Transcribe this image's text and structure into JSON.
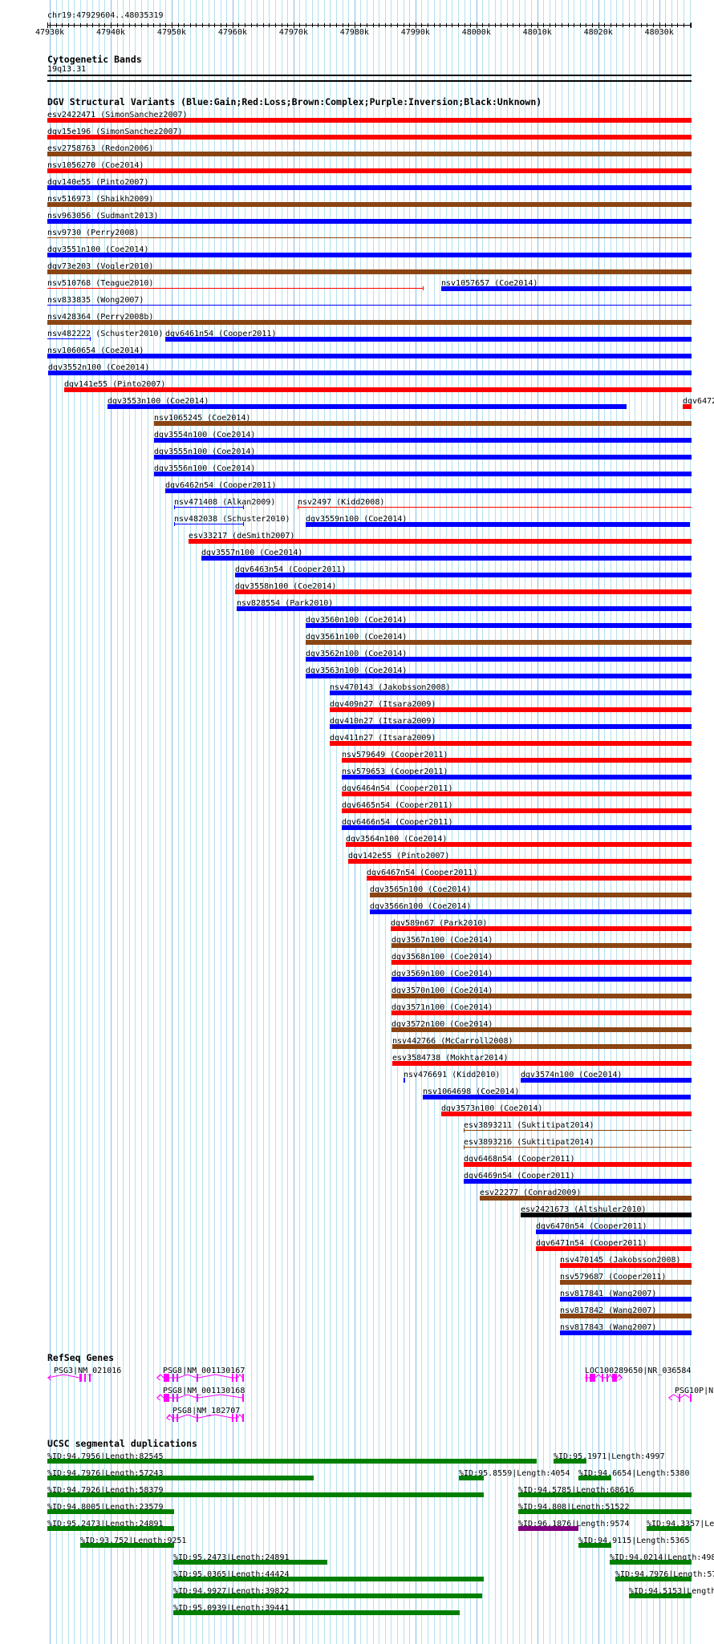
{
  "colors": {
    "gain": "#0000ff",
    "loss": "#ff0000",
    "complex": "#8b4513",
    "inversion": "#800080",
    "unknown": "#000000",
    "segdup": "#008000",
    "segdup_high": "#800080",
    "gene": "#ff00ff"
  },
  "view": {
    "start_kb": 47929.604,
    "end_kb": 48035.319
  },
  "ruler": {
    "region": "chr19:47929604..48035319",
    "ticks": [
      {
        "kb": 47930,
        "label": "47930k"
      },
      {
        "kb": 47940,
        "label": "47940k"
      },
      {
        "kb": 47950,
        "label": "47950k"
      },
      {
        "kb": 47960,
        "label": "47960k"
      },
      {
        "kb": 47970,
        "label": "47970k"
      },
      {
        "kb": 47980,
        "label": "47980k"
      },
      {
        "kb": 47990,
        "label": "47990k"
      },
      {
        "kb": 48000,
        "label": "48000k"
      },
      {
        "kb": 48010,
        "label": "48010k"
      },
      {
        "kb": 48020,
        "label": "48020k"
      },
      {
        "kb": 48030,
        "label": "48030k"
      }
    ]
  },
  "cytoband": {
    "title": "Cytogenetic Bands",
    "band": "19q13.31"
  },
  "dgv": {
    "title": "DGV Structural Variants (Blue:Gain;Red:Loss;Brown:Complex;Purple:Inversion;Black:Unknown)",
    "rows": [
      [
        {
          "label": "esv2422471 (SimonSanchez2007)",
          "type": "loss",
          "s": 47929.6
        }
      ],
      [
        {
          "label": "dgv15e196 (SimonSanchez2007)",
          "type": "loss",
          "s": 47929.6
        }
      ],
      [
        {
          "label": "esv2758763 (Redon2006)",
          "type": "complex",
          "s": 47929.6
        }
      ],
      [
        {
          "label": "nsv1056270 (Coe2014)",
          "type": "loss",
          "s": 47929.6
        }
      ],
      [
        {
          "label": "dgv140e55 (Pinto2007)",
          "type": "gain",
          "s": 47929.6
        }
      ],
      [
        {
          "label": "nsv516973 (Shaikh2009)",
          "type": "complex",
          "s": 47929.6
        }
      ],
      [
        {
          "label": "nsv963056 (Sudmant2013)",
          "type": "gain",
          "s": 47929.6
        }
      ],
      [
        {
          "label": "nsv9730 (Perry2008)",
          "type": "complex",
          "s": 47929.6,
          "thin": true
        }
      ],
      [
        {
          "label": "dgv3551n100 (Coe2014)",
          "type": "gain",
          "s": 47929.6
        }
      ],
      [
        {
          "label": "dgv73e203 (Vogler2010)",
          "type": "complex",
          "s": 47929.6
        }
      ],
      [
        {
          "label": "nsv510768 (Teague2010)",
          "type": "loss",
          "s": 47929.6,
          "e": 47991.3,
          "thin": true
        },
        {
          "label": "nsv1057657 (Coe2014)",
          "type": "gain",
          "s": 47994.2
        }
      ],
      [
        {
          "label": "nsv833835 (Wong2007)",
          "type": "gain",
          "s": 47929.6,
          "thin": true
        }
      ],
      [
        {
          "label": "nsv428364 (Perry2008b)",
          "type": "complex",
          "s": 47929.6
        }
      ],
      [
        {
          "label": "nsv482222 (Schuster2010)",
          "type": "gain",
          "s": 47929.6,
          "e": 47936.7,
          "thin": true
        },
        {
          "label": "dgv6461n54 (Cooper2011)",
          "type": "gain",
          "s": 47948.9
        }
      ],
      [
        {
          "label": "nsv1060654 (Coe2014)",
          "type": "gain",
          "s": 47929.6
        }
      ],
      [
        {
          "label": "dgv3552n100 (Coe2014)",
          "type": "gain",
          "s": 47929.7
        }
      ],
      [
        {
          "label": "dgv141e55 (Pinto2007)",
          "type": "loss",
          "s": 47932.4
        }
      ],
      [
        {
          "label": "dgv3553n100 (Coe2014)",
          "type": "gain",
          "s": 47939.5,
          "e": 48024.7
        },
        {
          "label": "dgv6472",
          "type": "loss",
          "s": 48033.9
        }
      ],
      [
        {
          "label": "nsv1065245 (Coe2014)",
          "type": "complex",
          "s": 47947.1
        }
      ],
      [
        {
          "label": "dgv3554n100 (Coe2014)",
          "type": "gain",
          "s": 47947.1
        }
      ],
      [
        {
          "label": "dgv3555n100 (Coe2014)",
          "type": "gain",
          "s": 47947.1
        }
      ],
      [
        {
          "label": "dgv3556n100 (Coe2014)",
          "type": "gain",
          "s": 47947.1
        }
      ],
      [
        {
          "label": "dgv6462n54 (Cooper2011)",
          "type": "gain",
          "s": 47948.9
        }
      ],
      [
        {
          "label": "nsv471408 (Alkan2009)",
          "type": "gain",
          "s": 47950.4,
          "e": 47961.9,
          "thin": true
        },
        {
          "label": "nsv2497 (Kidd2008)",
          "type": "loss",
          "s": 47970.7,
          "thin": true
        }
      ],
      [
        {
          "label": "nsv482038 (Schuster2010)",
          "type": "gain",
          "s": 47950.4,
          "e": 47961.9,
          "thin": true
        },
        {
          "label": "dgv3559n100 (Coe2014)",
          "type": "gain",
          "s": 47972.0,
          "e": 48035.1
        }
      ],
      [
        {
          "label": "esv33217 (deSmith2007)",
          "type": "loss",
          "s": 47952.8
        }
      ],
      [
        {
          "label": "dgv3557n100 (Coe2014)",
          "type": "gain",
          "s": 47954.9
        }
      ],
      [
        {
          "label": "dgv6463n54 (Cooper2011)",
          "type": "gain",
          "s": 47960.4
        }
      ],
      [
        {
          "label": "dgv3558n100 (Coe2014)",
          "type": "loss",
          "s": 47960.4
        }
      ],
      [
        {
          "label": "nsv828554 (Park2010)",
          "type": "gain",
          "s": 47960.7
        }
      ],
      [
        {
          "label": "dgv3560n100 (Coe2014)",
          "type": "gain",
          "s": 47972.0
        }
      ],
      [
        {
          "label": "dgv3561n100 (Coe2014)",
          "type": "complex",
          "s": 47972.0
        }
      ],
      [
        {
          "label": "dgv3562n100 (Coe2014)",
          "type": "gain",
          "s": 47972.0
        }
      ],
      [
        {
          "label": "dgv3563n100 (Coe2014)",
          "type": "gain",
          "s": 47972.0
        }
      ],
      [
        {
          "label": "nsv470143 (Jakobsson2008)",
          "type": "gain",
          "s": 47976.0
        }
      ],
      [
        {
          "label": "dgv409n27 (Itsara2009)",
          "type": "loss",
          "s": 47976.0
        }
      ],
      [
        {
          "label": "dgv410n27 (Itsara2009)",
          "type": "gain",
          "s": 47976.0
        }
      ],
      [
        {
          "label": "dgv411n27 (Itsara2009)",
          "type": "loss",
          "s": 47976.0
        }
      ],
      [
        {
          "label": "nsv579649 (Cooper2011)",
          "type": "loss",
          "s": 47977.9
        }
      ],
      [
        {
          "label": "nsv579653 (Cooper2011)",
          "type": "gain",
          "s": 47977.9
        }
      ],
      [
        {
          "label": "dgv6464n54 (Cooper2011)",
          "type": "loss",
          "s": 47977.9
        }
      ],
      [
        {
          "label": "dgv6465n54 (Cooper2011)",
          "type": "loss",
          "s": 47977.9
        }
      ],
      [
        {
          "label": "dgv6466n54 (Cooper2011)",
          "type": "gain",
          "s": 47977.9
        }
      ],
      [
        {
          "label": "dgv3564n100 (Coe2014)",
          "type": "loss",
          "s": 47978.6
        }
      ],
      [
        {
          "label": "dgv142e55 (Pinto2007)",
          "type": "loss",
          "s": 47979.0
        }
      ],
      [
        {
          "label": "dgv6467n54 (Cooper2011)",
          "type": "loss",
          "s": 47982.0
        }
      ],
      [
        {
          "label": "dgv3565n100 (Coe2014)",
          "type": "complex",
          "s": 47982.5
        }
      ],
      [
        {
          "label": "dgv3566n100 (Coe2014)",
          "type": "gain",
          "s": 47982.5
        }
      ],
      [
        {
          "label": "dgv589n67 (Park2010)",
          "type": "loss",
          "s": 47985.9
        }
      ],
      [
        {
          "label": "dgv3567n100 (Coe2014)",
          "type": "complex",
          "s": 47986.1
        }
      ],
      [
        {
          "label": "dgv3568n100 (Coe2014)",
          "type": "loss",
          "s": 47986.1
        }
      ],
      [
        {
          "label": "dgv3569n100 (Coe2014)",
          "type": "gain",
          "s": 47986.1
        }
      ],
      [
        {
          "label": "dgv3570n100 (Coe2014)",
          "type": "complex",
          "s": 47986.1
        }
      ],
      [
        {
          "label": "dgv3571n100 (Coe2014)",
          "type": "loss",
          "s": 47986.1
        }
      ],
      [
        {
          "label": "dgv3572n100 (Coe2014)",
          "type": "complex",
          "s": 47986.1
        }
      ],
      [
        {
          "label": "nsv442766 (McCarroll2008)",
          "type": "complex",
          "s": 47986.2
        }
      ],
      [
        {
          "label": "esv3584738 (Mokhtar2014)",
          "type": "loss",
          "s": 47986.2
        }
      ],
      [
        {
          "label": "nsv476691 (Kidd2010)",
          "type": "gain",
          "s": 47988.1,
          "e": 47988.35
        },
        {
          "label": "dgv3574n100 (Coe2014)",
          "type": "gain",
          "s": 48007.3
        }
      ],
      [
        {
          "label": "nsv1064698 (Coe2014)",
          "type": "gain",
          "s": 47991.2,
          "e": 48035.2
        }
      ],
      [
        {
          "label": "dgv3573n100 (Coe2014)",
          "type": "loss",
          "s": 47994.2
        }
      ],
      [
        {
          "label": "esv3893211 (Suktitipat2014)",
          "type": "complex",
          "s": 47997.9,
          "thin": true
        }
      ],
      [
        {
          "label": "esv3893216 (Suktitipat2014)",
          "type": "complex",
          "s": 47997.9,
          "thin": true
        }
      ],
      [
        {
          "label": "dgv6468n54 (Cooper2011)",
          "type": "loss",
          "s": 47997.9
        }
      ],
      [
        {
          "label": "dgv6469n54 (Cooper2011)",
          "type": "gain",
          "s": 47997.9
        }
      ],
      [
        {
          "label": "esv22277 (Conrad2009)",
          "type": "complex",
          "s": 48000.6
        }
      ],
      [
        {
          "label": "esv2421673 (Altshuler2010)",
          "type": "unknown",
          "s": 48007.3
        }
      ],
      [
        {
          "label": "dgv6470n54 (Cooper2011)",
          "type": "gain",
          "s": 48009.8
        }
      ],
      [
        {
          "label": "dgv6471n54 (Cooper2011)",
          "type": "loss",
          "s": 48009.8
        }
      ],
      [
        {
          "label": "nsv470145 (Jakobsson2008)",
          "type": "loss",
          "s": 48013.7
        }
      ],
      [
        {
          "label": "nsv579687 (Cooper2011)",
          "type": "complex",
          "s": 48013.7
        }
      ],
      [
        {
          "label": "nsv817841 (Wang2007)",
          "type": "gain",
          "s": 48013.7
        }
      ],
      [
        {
          "label": "nsv817842 (Wang2007)",
          "type": "complex",
          "s": 48013.7
        }
      ],
      [
        {
          "label": "nsv817843 (Wang2007)",
          "type": "gain",
          "s": 48013.7
        }
      ]
    ]
  },
  "refseq": {
    "title": "RefSeq Genes",
    "genes": [
      {
        "label": "PSG3|NM_021016",
        "row": 0,
        "strand": "-",
        "s": 47929.7,
        "e": 47936.6,
        "exons": [
          [
            47934.9,
            47935.3
          ],
          [
            47935.6,
            47935.9
          ],
          [
            47936.4,
            47936.6
          ]
        ]
      },
      {
        "label": "PSG8|NM_001130167",
        "row": 0,
        "strand": "-",
        "s": 47947.6,
        "e": 47961.9,
        "exons": [
          [
            47948.7,
            47949.6
          ],
          [
            47950.1,
            47950.4
          ],
          [
            47950.8,
            47951.1
          ],
          [
            47954.1,
            47954.4
          ],
          [
            47959.9,
            47960.2
          ],
          [
            47960.5,
            47960.8
          ],
          [
            47961.6,
            47961.9
          ]
        ]
      },
      {
        "label": "LOC100289650|NR_036584",
        "row": 0,
        "strand": "+",
        "s": 48017.8,
        "e": 48023.9,
        "exons": [
          [
            48018.0,
            48018.3
          ],
          [
            48018.6,
            48019.5
          ],
          [
            48020.6,
            48020.9
          ],
          [
            48021.3,
            48021.6
          ],
          [
            48022.3,
            48023.1
          ]
        ]
      },
      {
        "label": "PSG8|NM_001130168",
        "row": 1,
        "strand": "-",
        "s": 47947.6,
        "e": 47961.9,
        "exons": [
          [
            47948.7,
            47949.6
          ],
          [
            47950.1,
            47950.4
          ],
          [
            47950.8,
            47951.1
          ],
          [
            47954.1,
            47954.4
          ],
          [
            47961.6,
            47961.9
          ]
        ]
      },
      {
        "label": "PSG10P|N",
        "row": 1,
        "strand": "-",
        "s": 48031.6,
        "e": 48035.3,
        "exons": [
          [
            48033.2,
            48033.5
          ],
          [
            48035.0,
            48035.3
          ]
        ]
      },
      {
        "label": "PSG8|NM_182707",
        "row": 2,
        "strand": "-",
        "s": 47949.2,
        "e": 47961.9,
        "exons": [
          [
            47950.1,
            47950.4
          ],
          [
            47950.8,
            47951.1
          ],
          [
            47954.1,
            47954.4
          ],
          [
            47959.9,
            47960.2
          ],
          [
            47960.5,
            47960.8
          ],
          [
            47961.6,
            47961.9
          ]
        ]
      }
    ]
  },
  "segdups": {
    "title": "UCSC segmental duplications",
    "rows": [
      [
        {
          "label": "%ID:94.7956|Length:82545",
          "s": 47929.6,
          "e": 48009.9
        },
        {
          "label": "%ID:95.1971|Length:4997",
          "s": 48012.7,
          "e": 48018.1
        }
      ],
      [
        {
          "label": "%ID:94.7976|Length:57243",
          "s": 47929.6,
          "e": 47973.3
        },
        {
          "label": "%ID:95.8559|Length:4054",
          "s": 47997.1,
          "e": 48001.2
        },
        {
          "label": "%ID:94.6654|Length:5380",
          "s": 48016.8,
          "e": 48022.2
        }
      ],
      [
        {
          "label": "%ID:94.7926|Length:58379",
          "s": 47929.6,
          "e": 48001.2
        },
        {
          "label": "%ID:94.5785|Length:68616",
          "s": 48006.9,
          "e": 48035.3
        }
      ],
      [
        {
          "label": "%ID:94.8005|Length:23579",
          "s": 47929.6,
          "e": 47950.4
        },
        {
          "label": "%ID:94.808|Length:51522",
          "s": 48006.9,
          "e": 48035.3
        }
      ],
      [
        {
          "label": "%ID:95.2473|Length:24891",
          "s": 47929.6,
          "e": 47950.4
        },
        {
          "label": "%ID:96.1876|Length:9574",
          "s": 48006.9,
          "e": 48016.8,
          "high": true
        },
        {
          "label": "%ID:94.3357|Le",
          "s": 48028.0,
          "e": 48035.3
        }
      ],
      [
        {
          "label": "%ID:93.752|Length:9251",
          "s": 47935.0,
          "e": 47950.4
        },
        {
          "label": "%ID:94.9115|Length:5365",
          "s": 48016.8,
          "e": 48022.2
        }
      ],
      [
        {
          "label": "%ID:95.2473|Length:24891",
          "s": 47950.3,
          "e": 47975.5
        },
        {
          "label": "%ID:94.0214|Length:498",
          "s": 48021.9,
          "e": 48035.3
        }
      ],
      [
        {
          "label": "%ID:95.0365|Length:44424",
          "s": 47950.3,
          "e": 48001.2
        },
        {
          "label": "%ID:94.7976|Length:57",
          "s": 48022.8,
          "e": 48035.3
        }
      ],
      [
        {
          "label": "%ID:94.9927|Length:39822",
          "s": 47950.3,
          "e": 48001.0
        },
        {
          "label": "%ID:94.5153|Length",
          "s": 48025.1,
          "e": 48035.3
        }
      ],
      [
        {
          "label": "%ID:95.0939|Length:39441",
          "s": 47950.3,
          "e": 47997.3
        }
      ]
    ]
  }
}
